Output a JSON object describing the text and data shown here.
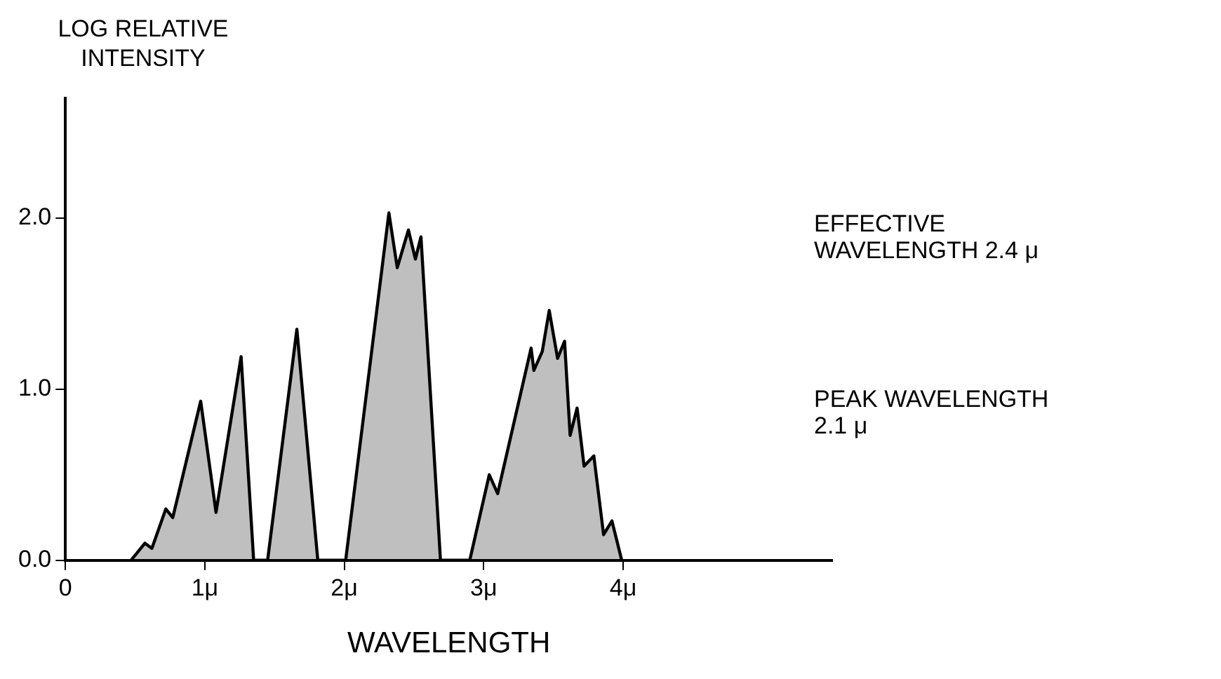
{
  "chart_data": {
    "type": "area",
    "ylabel": "LOG RELATIVE INTENSITY",
    "xlabel": "WAVELENGTH",
    "annotations": [
      "EFFECTIVE WAVELENGTH 2.4 μ",
      "PEAK WAVELENGTH 2.1 μ"
    ],
    "x": [
      0.47,
      0.57,
      0.62,
      0.72,
      0.77,
      0.97,
      1.08,
      1.26,
      1.35,
      1.45,
      1.66,
      1.81,
      2.01,
      2.32,
      2.38,
      2.46,
      2.51,
      2.55,
      2.69,
      2.9,
      3.04,
      3.1,
      3.34,
      3.36,
      3.42,
      3.47,
      3.53,
      3.58,
      3.62,
      3.67,
      3.72,
      3.79,
      3.86,
      3.92,
      3.99
    ],
    "values": [
      0,
      0.1,
      0.07,
      0.3,
      0.25,
      0.93,
      0.28,
      1.19,
      0,
      0,
      1.35,
      0,
      0,
      2.03,
      1.71,
      1.93,
      1.76,
      1.89,
      0,
      0,
      0.5,
      0.39,
      1.24,
      1.11,
      1.22,
      1.46,
      1.18,
      1.28,
      0.73,
      0.89,
      0.55,
      0.61,
      0.15,
      0.23,
      0
    ],
    "color": "#000000",
    "xlim": [
      0,
      5.5
    ],
    "xticks": [
      0,
      {
        "value": 1,
        "label": "1μ"
      },
      {
        "value": 2,
        "label": "2μ"
      },
      {
        "value": 3,
        "label": "3μ"
      },
      {
        "value": 4,
        "label": "4μ"
      }
    ],
    "ylim": [
      0,
      2.7
    ],
    "yticks": [
      {
        "value": 0,
        "label": "0.0"
      },
      {
        "value": 1,
        "label": "1.0"
      },
      {
        "value": 2,
        "label": "2.0"
      }
    ],
    "grid": false,
    "legend": false,
    "marker": "none",
    "line_style": "solid"
  }
}
